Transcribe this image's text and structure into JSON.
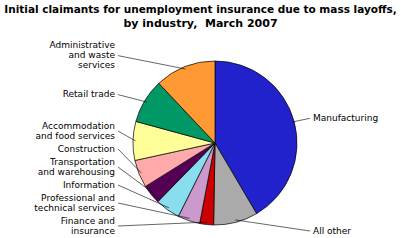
{
  "chart_data": {
    "type": "pie",
    "title": "Initial claimants for unemployment insurance due to mass layoffs,",
    "subtitle": "by industry,  March 2007",
    "categories": [
      "Manufacturing",
      "All other",
      "Finance and\ninsurance",
      "Professional and\ntechnical services",
      "Information",
      "Transportation\nand warehousing",
      "Construction",
      "Accommodation\nand food services",
      "Retail trade",
      "Administrative\nand waste\nservices"
    ],
    "values": [
      38,
      8,
      2.5,
      4,
      4.5,
      3.5,
      5,
      7,
      8,
      11
    ],
    "colors": [
      "#2222cc",
      "#aaaaaa",
      "#cc0000",
      "#cc99cc",
      "#88ddee",
      "#550055",
      "#ffaaaa",
      "#ffff99",
      "#009966",
      "#ff9933"
    ]
  }
}
